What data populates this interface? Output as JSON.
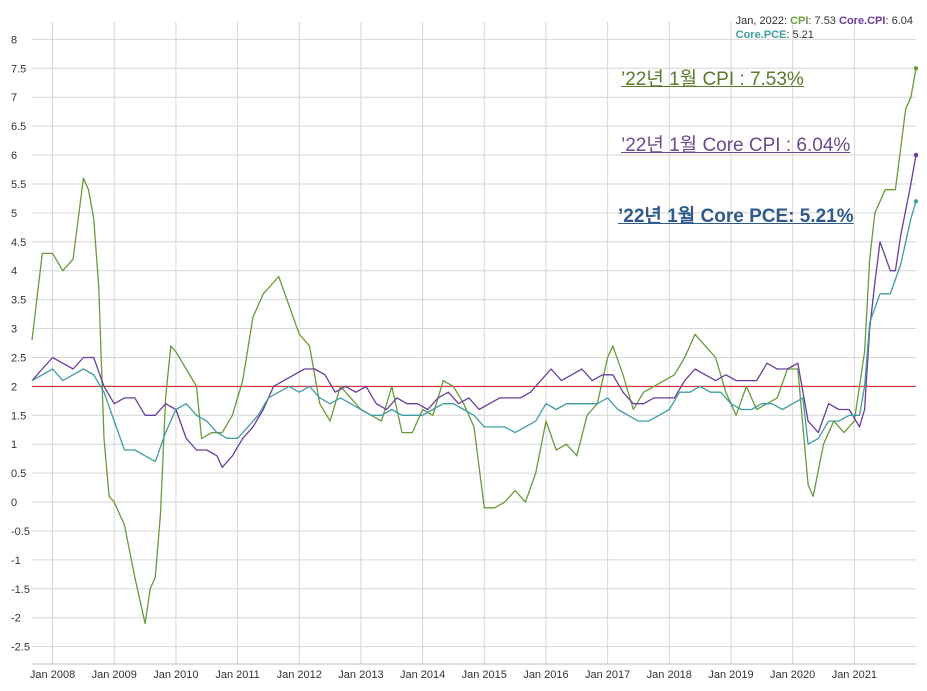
{
  "colors": {
    "cpi": "#6a9a3a",
    "core_cpi": "#6b3d9a",
    "core_pce": "#3f9ca3",
    "reference_line": "#cc2222",
    "grid": "#d6d6d6",
    "axis_text": "#333333"
  },
  "legend": {
    "date": "Jan, 2022:",
    "cpi_key": "CPI",
    "cpi_val": ": 7.53",
    "core_cpi_key": "Core.CPI",
    "core_cpi_val": ": 6.04",
    "core_pce_key": "Core.PCE",
    "core_pce_val": ": 5.21"
  },
  "annotations": {
    "cpi": "’22년 1월 CPI : 7.53%",
    "core_cpi": "’22년 1월 Core CPI : 6.04%",
    "core_pce": "’22년 1월 Core PCE: 5.21%"
  },
  "chart_data": {
    "type": "line",
    "xlabel": "",
    "ylabel": "",
    "x_ticks": [
      "Jan 2008",
      "Jan 2009",
      "Jan 2010",
      "Jan 2011",
      "Jan 2012",
      "Jan 2013",
      "Jan 2014",
      "Jan 2015",
      "Jan 2016",
      "Jan 2017",
      "Jan 2018",
      "Jan 2019",
      "Jan 2020",
      "Jan 2021"
    ],
    "y_ticks": [
      "-2.5",
      "-2",
      "-1.5",
      "-1",
      "-0.5",
      "0",
      "0.5",
      "1",
      "1.5",
      "2",
      "2.5",
      "3",
      "3.5",
      "4",
      "4.5",
      "5",
      "5.5",
      "6",
      "6.5",
      "7",
      "7.5",
      "8"
    ],
    "ylim": [
      -2.8,
      8.3
    ],
    "xlim": [
      "2007-09",
      "2022-01"
    ],
    "grid": true,
    "reference_line": 2,
    "series": [
      {
        "name": "CPI",
        "color_key": "cpi",
        "points": [
          [
            "2007-09",
            2.8
          ],
          [
            "2007-11",
            4.3
          ],
          [
            "2008-01",
            4.3
          ],
          [
            "2008-03",
            4.0
          ],
          [
            "2008-05",
            4.2
          ],
          [
            "2008-07",
            5.6
          ],
          [
            "2008-08",
            5.4
          ],
          [
            "2008-09",
            4.9
          ],
          [
            "2008-10",
            3.7
          ],
          [
            "2008-11",
            1.1
          ],
          [
            "2008-12",
            0.1
          ],
          [
            "2009-01",
            0.0
          ],
          [
            "2009-03",
            -0.4
          ],
          [
            "2009-05",
            -1.3
          ],
          [
            "2009-07",
            -2.1
          ],
          [
            "2009-08",
            -1.5
          ],
          [
            "2009-09",
            -1.3
          ],
          [
            "2009-10",
            -0.2
          ],
          [
            "2009-11",
            1.8
          ],
          [
            "2009-12",
            2.7
          ],
          [
            "2010-01",
            2.6
          ],
          [
            "2010-03",
            2.3
          ],
          [
            "2010-05",
            2.0
          ],
          [
            "2010-06",
            1.1
          ],
          [
            "2010-08",
            1.2
          ],
          [
            "2010-10",
            1.2
          ],
          [
            "2010-12",
            1.5
          ],
          [
            "2011-02",
            2.1
          ],
          [
            "2011-04",
            3.2
          ],
          [
            "2011-06",
            3.6
          ],
          [
            "2011-08",
            3.8
          ],
          [
            "2011-09",
            3.9
          ],
          [
            "2011-11",
            3.4
          ],
          [
            "2012-01",
            2.9
          ],
          [
            "2012-03",
            2.7
          ],
          [
            "2012-05",
            1.7
          ],
          [
            "2012-07",
            1.4
          ],
          [
            "2012-09",
            2.0
          ],
          [
            "2012-11",
            1.8
          ],
          [
            "2013-01",
            1.6
          ],
          [
            "2013-03",
            1.5
          ],
          [
            "2013-05",
            1.4
          ],
          [
            "2013-07",
            2.0
          ],
          [
            "2013-09",
            1.2
          ],
          [
            "2013-11",
            1.2
          ],
          [
            "2014-01",
            1.6
          ],
          [
            "2014-03",
            1.5
          ],
          [
            "2014-05",
            2.1
          ],
          [
            "2014-07",
            2.0
          ],
          [
            "2014-09",
            1.7
          ],
          [
            "2014-11",
            1.3
          ],
          [
            "2015-01",
            -0.1
          ],
          [
            "2015-03",
            -0.1
          ],
          [
            "2015-05",
            0.0
          ],
          [
            "2015-07",
            0.2
          ],
          [
            "2015-09",
            0.0
          ],
          [
            "2015-11",
            0.5
          ],
          [
            "2016-01",
            1.4
          ],
          [
            "2016-03",
            0.9
          ],
          [
            "2016-05",
            1.0
          ],
          [
            "2016-07",
            0.8
          ],
          [
            "2016-09",
            1.5
          ],
          [
            "2016-11",
            1.7
          ],
          [
            "2017-01",
            2.5
          ],
          [
            "2017-02",
            2.7
          ],
          [
            "2017-04",
            2.2
          ],
          [
            "2017-06",
            1.6
          ],
          [
            "2017-08",
            1.9
          ],
          [
            "2017-10",
            2.0
          ],
          [
            "2017-12",
            2.1
          ],
          [
            "2018-02",
            2.2
          ],
          [
            "2018-04",
            2.5
          ],
          [
            "2018-06",
            2.9
          ],
          [
            "2018-08",
            2.7
          ],
          [
            "2018-10",
            2.5
          ],
          [
            "2018-12",
            1.9
          ],
          [
            "2019-02",
            1.5
          ],
          [
            "2019-04",
            2.0
          ],
          [
            "2019-06",
            1.6
          ],
          [
            "2019-08",
            1.7
          ],
          [
            "2019-10",
            1.8
          ],
          [
            "2019-12",
            2.3
          ],
          [
            "2020-02",
            2.3
          ],
          [
            "2020-04",
            0.3
          ],
          [
            "2020-05",
            0.1
          ],
          [
            "2020-07",
            1.0
          ],
          [
            "2020-09",
            1.4
          ],
          [
            "2020-11",
            1.2
          ],
          [
            "2021-01",
            1.4
          ],
          [
            "2021-03",
            2.6
          ],
          [
            "2021-04",
            4.2
          ],
          [
            "2021-05",
            5.0
          ],
          [
            "2021-07",
            5.4
          ],
          [
            "2021-09",
            5.4
          ],
          [
            "2021-11",
            6.8
          ],
          [
            "2021-12",
            7.0
          ],
          [
            "2022-01",
            7.5
          ]
        ]
      },
      {
        "name": "Core.CPI",
        "color_key": "core_cpi",
        "points": [
          [
            "2007-09",
            2.1
          ],
          [
            "2007-11",
            2.3
          ],
          [
            "2008-01",
            2.5
          ],
          [
            "2008-03",
            2.4
          ],
          [
            "2008-05",
            2.3
          ],
          [
            "2008-07",
            2.5
          ],
          [
            "2008-09",
            2.5
          ],
          [
            "2008-11",
            2.0
          ],
          [
            "2009-01",
            1.7
          ],
          [
            "2009-03",
            1.8
          ],
          [
            "2009-05",
            1.8
          ],
          [
            "2009-07",
            1.5
          ],
          [
            "2009-09",
            1.5
          ],
          [
            "2009-11",
            1.7
          ],
          [
            "2010-01",
            1.6
          ],
          [
            "2010-03",
            1.1
          ],
          [
            "2010-05",
            0.9
          ],
          [
            "2010-07",
            0.9
          ],
          [
            "2010-09",
            0.8
          ],
          [
            "2010-10",
            0.6
          ],
          [
            "2010-12",
            0.8
          ],
          [
            "2011-02",
            1.1
          ],
          [
            "2011-04",
            1.3
          ],
          [
            "2011-06",
            1.6
          ],
          [
            "2011-08",
            2.0
          ],
          [
            "2011-10",
            2.1
          ],
          [
            "2011-12",
            2.2
          ],
          [
            "2012-02",
            2.3
          ],
          [
            "2012-04",
            2.3
          ],
          [
            "2012-06",
            2.2
          ],
          [
            "2012-08",
            1.9
          ],
          [
            "2012-10",
            2.0
          ],
          [
            "2012-12",
            1.9
          ],
          [
            "2013-02",
            2.0
          ],
          [
            "2013-04",
            1.7
          ],
          [
            "2013-06",
            1.6
          ],
          [
            "2013-08",
            1.8
          ],
          [
            "2013-10",
            1.7
          ],
          [
            "2013-12",
            1.7
          ],
          [
            "2014-02",
            1.6
          ],
          [
            "2014-04",
            1.8
          ],
          [
            "2014-06",
            1.9
          ],
          [
            "2014-08",
            1.7
          ],
          [
            "2014-10",
            1.8
          ],
          [
            "2014-12",
            1.6
          ],
          [
            "2015-02",
            1.7
          ],
          [
            "2015-04",
            1.8
          ],
          [
            "2015-06",
            1.8
          ],
          [
            "2015-08",
            1.8
          ],
          [
            "2015-10",
            1.9
          ],
          [
            "2015-12",
            2.1
          ],
          [
            "2016-02",
            2.3
          ],
          [
            "2016-04",
            2.1
          ],
          [
            "2016-06",
            2.2
          ],
          [
            "2016-08",
            2.3
          ],
          [
            "2016-10",
            2.1
          ],
          [
            "2016-12",
            2.2
          ],
          [
            "2017-02",
            2.2
          ],
          [
            "2017-04",
            1.9
          ],
          [
            "2017-06",
            1.7
          ],
          [
            "2017-08",
            1.7
          ],
          [
            "2017-10",
            1.8
          ],
          [
            "2017-12",
            1.8
          ],
          [
            "2018-02",
            1.8
          ],
          [
            "2018-04",
            2.1
          ],
          [
            "2018-06",
            2.3
          ],
          [
            "2018-08",
            2.2
          ],
          [
            "2018-10",
            2.1
          ],
          [
            "2018-12",
            2.2
          ],
          [
            "2019-02",
            2.1
          ],
          [
            "2019-04",
            2.1
          ],
          [
            "2019-06",
            2.1
          ],
          [
            "2019-08",
            2.4
          ],
          [
            "2019-10",
            2.3
          ],
          [
            "2019-12",
            2.3
          ],
          [
            "2020-02",
            2.4
          ],
          [
            "2020-04",
            1.4
          ],
          [
            "2020-06",
            1.2
          ],
          [
            "2020-08",
            1.7
          ],
          [
            "2020-10",
            1.6
          ],
          [
            "2020-12",
            1.6
          ],
          [
            "2021-02",
            1.3
          ],
          [
            "2021-03",
            1.6
          ],
          [
            "2021-04",
            3.0
          ],
          [
            "2021-05",
            3.8
          ],
          [
            "2021-06",
            4.5
          ],
          [
            "2021-08",
            4.0
          ],
          [
            "2021-09",
            4.0
          ],
          [
            "2021-10",
            4.6
          ],
          [
            "2021-12",
            5.5
          ],
          [
            "2022-01",
            6.0
          ]
        ]
      },
      {
        "name": "Core.PCE",
        "color_key": "core_pce",
        "points": [
          [
            "2007-09",
            2.1
          ],
          [
            "2007-11",
            2.2
          ],
          [
            "2008-01",
            2.3
          ],
          [
            "2008-03",
            2.1
          ],
          [
            "2008-05",
            2.2
          ],
          [
            "2008-07",
            2.3
          ],
          [
            "2008-09",
            2.2
          ],
          [
            "2008-11",
            1.9
          ],
          [
            "2009-01",
            1.4
          ],
          [
            "2009-03",
            0.9
          ],
          [
            "2009-05",
            0.9
          ],
          [
            "2009-07",
            0.8
          ],
          [
            "2009-09",
            0.7
          ],
          [
            "2009-11",
            1.2
          ],
          [
            "2010-01",
            1.6
          ],
          [
            "2010-03",
            1.7
          ],
          [
            "2010-05",
            1.5
          ],
          [
            "2010-07",
            1.4
          ],
          [
            "2010-09",
            1.2
          ],
          [
            "2010-11",
            1.1
          ],
          [
            "2011-01",
            1.1
          ],
          [
            "2011-03",
            1.3
          ],
          [
            "2011-05",
            1.5
          ],
          [
            "2011-07",
            1.8
          ],
          [
            "2011-09",
            1.9
          ],
          [
            "2011-11",
            2.0
          ],
          [
            "2012-01",
            1.9
          ],
          [
            "2012-03",
            2.0
          ],
          [
            "2012-05",
            1.8
          ],
          [
            "2012-07",
            1.7
          ],
          [
            "2012-09",
            1.8
          ],
          [
            "2012-11",
            1.7
          ],
          [
            "2013-01",
            1.6
          ],
          [
            "2013-03",
            1.5
          ],
          [
            "2013-05",
            1.5
          ],
          [
            "2013-07",
            1.6
          ],
          [
            "2013-09",
            1.5
          ],
          [
            "2013-11",
            1.5
          ],
          [
            "2014-01",
            1.5
          ],
          [
            "2014-03",
            1.6
          ],
          [
            "2014-05",
            1.7
          ],
          [
            "2014-07",
            1.7
          ],
          [
            "2014-09",
            1.6
          ],
          [
            "2014-11",
            1.5
          ],
          [
            "2015-01",
            1.3
          ],
          [
            "2015-03",
            1.3
          ],
          [
            "2015-05",
            1.3
          ],
          [
            "2015-07",
            1.2
          ],
          [
            "2015-09",
            1.3
          ],
          [
            "2015-11",
            1.4
          ],
          [
            "2016-01",
            1.7
          ],
          [
            "2016-03",
            1.6
          ],
          [
            "2016-05",
            1.7
          ],
          [
            "2016-07",
            1.7
          ],
          [
            "2016-09",
            1.7
          ],
          [
            "2016-11",
            1.7
          ],
          [
            "2017-01",
            1.8
          ],
          [
            "2017-03",
            1.6
          ],
          [
            "2017-05",
            1.5
          ],
          [
            "2017-07",
            1.4
          ],
          [
            "2017-09",
            1.4
          ],
          [
            "2017-11",
            1.5
          ],
          [
            "2018-01",
            1.6
          ],
          [
            "2018-03",
            1.9
          ],
          [
            "2018-05",
            1.9
          ],
          [
            "2018-07",
            2.0
          ],
          [
            "2018-09",
            1.9
          ],
          [
            "2018-11",
            1.9
          ],
          [
            "2019-01",
            1.7
          ],
          [
            "2019-03",
            1.6
          ],
          [
            "2019-05",
            1.6
          ],
          [
            "2019-07",
            1.7
          ],
          [
            "2019-09",
            1.7
          ],
          [
            "2019-11",
            1.6
          ],
          [
            "2020-01",
            1.7
          ],
          [
            "2020-03",
            1.8
          ],
          [
            "2020-04",
            1.0
          ],
          [
            "2020-06",
            1.1
          ],
          [
            "2020-08",
            1.4
          ],
          [
            "2020-10",
            1.4
          ],
          [
            "2020-12",
            1.5
          ],
          [
            "2021-02",
            1.5
          ],
          [
            "2021-03",
            2.0
          ],
          [
            "2021-04",
            3.1
          ],
          [
            "2021-06",
            3.6
          ],
          [
            "2021-08",
            3.6
          ],
          [
            "2021-10",
            4.1
          ],
          [
            "2021-12",
            4.9
          ],
          [
            "2022-01",
            5.2
          ]
        ]
      }
    ]
  }
}
